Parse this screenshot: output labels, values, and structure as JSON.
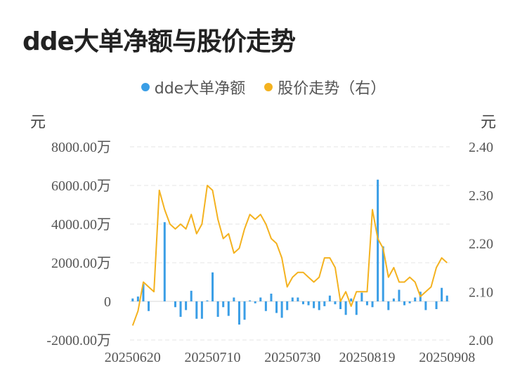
{
  "title": "dde大单净额与股价走势",
  "chart_data": {
    "type": "bar+line",
    "title": "dde大单净额与股价走势",
    "series": [
      {
        "name": "dde大单净额",
        "type": "bar",
        "axis": "left",
        "color": "#3a9ee6",
        "values": [
          150,
          250,
          900,
          -500,
          0,
          0,
          4100,
          0,
          -300,
          -800,
          -450,
          550,
          -900,
          -900,
          50,
          1500,
          -800,
          -300,
          -750,
          200,
          -1200,
          -950,
          50,
          -100,
          200,
          -500,
          400,
          -600,
          -850,
          -450,
          200,
          200,
          -150,
          -200,
          -350,
          -450,
          -250,
          300,
          -150,
          -400,
          -700,
          150,
          -700,
          450,
          -200,
          -300,
          6300,
          2850,
          -450,
          150,
          600,
          -200,
          -100,
          200,
          500,
          -450,
          0,
          -400,
          700,
          300
        ]
      },
      {
        "name": "股价走势（右）",
        "type": "line",
        "axis": "right",
        "color": "#f4b21f",
        "values": [
          2.03,
          2.06,
          2.12,
          2.11,
          2.1,
          2.31,
          2.27,
          2.24,
          2.23,
          2.24,
          2.23,
          2.26,
          2.22,
          2.24,
          2.32,
          2.31,
          2.25,
          2.21,
          2.22,
          2.18,
          2.19,
          2.23,
          2.26,
          2.25,
          2.26,
          2.24,
          2.21,
          2.2,
          2.17,
          2.11,
          2.13,
          2.14,
          2.14,
          2.13,
          2.12,
          2.13,
          2.17,
          2.17,
          2.15,
          2.08,
          2.1,
          2.07,
          2.1,
          2.1,
          2.1,
          2.27,
          2.21,
          2.19,
          2.13,
          2.15,
          2.12,
          2.12,
          2.13,
          2.12,
          2.09,
          2.1,
          2.11,
          2.15,
          2.17,
          2.16
        ]
      }
    ],
    "x_tick_labels": [
      "20250620",
      "20250710",
      "20250730",
      "20250819",
      "20250908"
    ],
    "left_axis": {
      "unit": "元",
      "ticks": [
        "8000.00万",
        "6000.00万",
        "4000.00万",
        "2000.00万",
        "0",
        "-2000.00万"
      ],
      "ylim": [
        -2000,
        8000
      ]
    },
    "right_axis": {
      "unit": "元",
      "ticks": [
        "2.40",
        "2.30",
        "2.20",
        "2.10",
        "2.00"
      ],
      "ylim": [
        2.0,
        2.4
      ]
    },
    "grid": true,
    "legend_position": "top-center"
  }
}
